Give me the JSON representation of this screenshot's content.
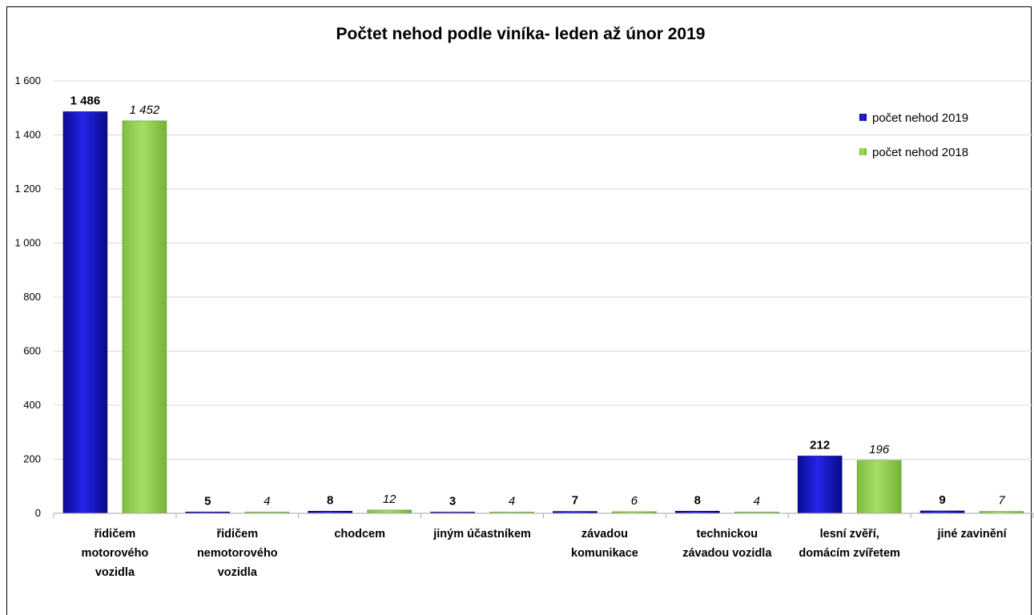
{
  "chart_data": {
    "type": "bar",
    "title": "Počtet nehod podle viníka- leden až únor 2019",
    "categories": [
      [
        "řidičem",
        "motorového",
        "vozidla"
      ],
      [
        "řidičem",
        "nemotorového",
        "vozidla"
      ],
      [
        "chodcem"
      ],
      [
        "jiným účastníkem"
      ],
      [
        "závadou",
        "komunikace"
      ],
      [
        "technickou",
        "závadou vozidla"
      ],
      [
        "lesní zvěří,",
        "domácím zvířetem"
      ],
      [
        "jiné zavinění"
      ]
    ],
    "series": [
      {
        "name": "počet nehod 2019",
        "values": [
          1486,
          5,
          8,
          3,
          7,
          8,
          212,
          9
        ],
        "labels": [
          "1 486",
          "5",
          "8",
          "3",
          "7",
          "8",
          "212",
          "9"
        ],
        "color": "#1a1ad0"
      },
      {
        "name": "počet nehod 2018",
        "values": [
          1452,
          4,
          12,
          4,
          6,
          4,
          196,
          7
        ],
        "labels": [
          "1 452",
          "4",
          "12",
          "4",
          "6",
          "4",
          "196",
          "7"
        ],
        "color": "#92d050"
      }
    ],
    "ylim": [
      0,
      1600
    ],
    "yticks": [
      0,
      200,
      400,
      600,
      800,
      1000,
      1200,
      1400,
      1600
    ],
    "ytick_labels": [
      "0",
      "200",
      "400",
      "600",
      "800",
      "1 000",
      "1 200",
      "1 400",
      "1 600"
    ],
    "grid": true,
    "legend_position": "top-right"
  }
}
